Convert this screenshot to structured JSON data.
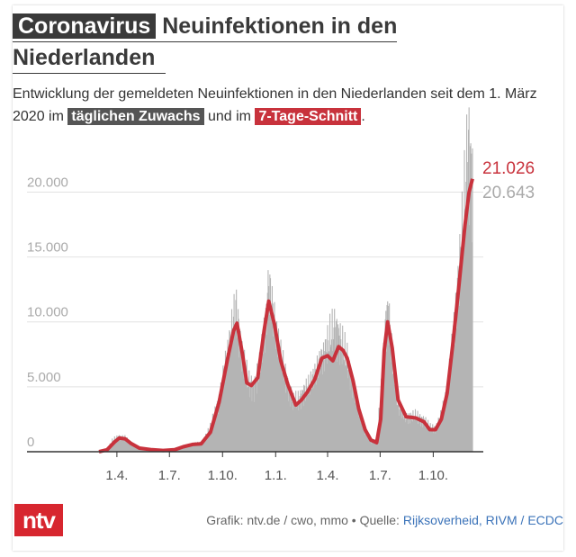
{
  "header": {
    "title_highlight": "Coronavirus",
    "title_line1_rest": "Neuinfektionen in den",
    "title_line2": "Niederlanden"
  },
  "subtitle": {
    "part1": "Entwicklung der gemeldeten Neuinfektionen in den Niederlanden seit dem 1. März 2020 im",
    "pill_daily": "täglichen Zuwachs",
    "part2": "und im",
    "pill_avg": "7-Tage-Schnitt",
    "part3": "."
  },
  "colors": {
    "bars": "#b4b4b4",
    "average_line": "#c8323c",
    "grid": "#e2e2e2",
    "axis": "#333333",
    "latest_avg_label": "#c8323c",
    "latest_daily_label": "#aaaaaa",
    "brand": "#d7262f",
    "source_link": "#3b73b9"
  },
  "chart_data": {
    "type": "bar",
    "x_start": "2020-03-01",
    "x_end": "2021-12-08",
    "ylim": [
      0,
      23500
    ],
    "y_ticks": [
      {
        "value": 0,
        "label": "0"
      },
      {
        "value": 5000,
        "label": "5.000"
      },
      {
        "value": 10000,
        "label": "10.000"
      },
      {
        "value": 15000,
        "label": "15.000"
      },
      {
        "value": 20000,
        "label": "20.000"
      }
    ],
    "x_ticks": [
      {
        "date": "2020-04-01",
        "label": "1.4."
      },
      {
        "date": "2020-07-01",
        "label": "1.7."
      },
      {
        "date": "2020-10-01",
        "label": "1.10."
      },
      {
        "date": "2021-01-01",
        "label": "1.1."
      },
      {
        "date": "2021-04-01",
        "label": "1.4."
      },
      {
        "date": "2021-07-01",
        "label": "1.7."
      },
      {
        "date": "2021-10-01",
        "label": "1.10."
      }
    ],
    "series": [
      {
        "name": "täglichen Zuwachs",
        "style": "bars",
        "points": [
          [
            "2020-03-01",
            0
          ],
          [
            "2020-03-15",
            180
          ],
          [
            "2020-03-25",
            900
          ],
          [
            "2020-04-05",
            1150
          ],
          [
            "2020-04-15",
            1050
          ],
          [
            "2020-04-25",
            650
          ],
          [
            "2020-05-10",
            250
          ],
          [
            "2020-06-01",
            150
          ],
          [
            "2020-06-20",
            100
          ],
          [
            "2020-07-10",
            180
          ],
          [
            "2020-07-25",
            450
          ],
          [
            "2020-08-10",
            600
          ],
          [
            "2020-08-25",
            650
          ],
          [
            "2020-09-10",
            1800
          ],
          [
            "2020-09-25",
            4000
          ],
          [
            "2020-10-10",
            7500
          ],
          [
            "2020-10-20",
            10200
          ],
          [
            "2020-10-25",
            11000
          ],
          [
            "2020-11-05",
            7000
          ],
          [
            "2020-11-15",
            5200
          ],
          [
            "2020-11-25",
            5000
          ],
          [
            "2020-12-05",
            6400
          ],
          [
            "2020-12-15",
            10000
          ],
          [
            "2020-12-20",
            13000
          ],
          [
            "2020-12-28",
            10500
          ],
          [
            "2021-01-10",
            7200
          ],
          [
            "2021-01-20",
            5500
          ],
          [
            "2021-02-01",
            3700
          ],
          [
            "2021-02-10",
            3900
          ],
          [
            "2021-02-20",
            4700
          ],
          [
            "2021-03-01",
            5000
          ],
          [
            "2021-03-15",
            6500
          ],
          [
            "2021-03-25",
            7500
          ],
          [
            "2021-04-05",
            8700
          ],
          [
            "2021-04-15",
            9500
          ],
          [
            "2021-04-25",
            8200
          ],
          [
            "2021-05-05",
            7000
          ],
          [
            "2021-05-15",
            5000
          ],
          [
            "2021-05-25",
            3200
          ],
          [
            "2021-06-05",
            1500
          ],
          [
            "2021-06-15",
            800
          ],
          [
            "2021-06-25",
            900
          ],
          [
            "2021-07-05",
            5500
          ],
          [
            "2021-07-10",
            9500
          ],
          [
            "2021-07-15",
            11000
          ],
          [
            "2021-07-22",
            7000
          ],
          [
            "2021-08-01",
            3500
          ],
          [
            "2021-08-15",
            2600
          ],
          [
            "2021-09-01",
            2700
          ],
          [
            "2021-09-15",
            2400
          ],
          [
            "2021-09-25",
            1800
          ],
          [
            "2021-10-05",
            1800
          ],
          [
            "2021-10-15",
            2800
          ],
          [
            "2021-10-25",
            4500
          ],
          [
            "2021-11-05",
            9000
          ],
          [
            "2021-11-15",
            14000
          ],
          [
            "2021-11-22",
            17500
          ],
          [
            "2021-11-28",
            21500
          ],
          [
            "2021-12-01",
            23500
          ],
          [
            "2021-12-05",
            22000
          ],
          [
            "2021-12-08",
            20643
          ]
        ]
      },
      {
        "name": "7-Tage-Schnitt",
        "style": "line",
        "points": [
          [
            "2020-03-01",
            0
          ],
          [
            "2020-03-15",
            150
          ],
          [
            "2020-03-28",
            750
          ],
          [
            "2020-04-05",
            1050
          ],
          [
            "2020-04-15",
            1000
          ],
          [
            "2020-04-25",
            650
          ],
          [
            "2020-05-10",
            280
          ],
          [
            "2020-06-01",
            150
          ],
          [
            "2020-06-20",
            100
          ],
          [
            "2020-07-10",
            150
          ],
          [
            "2020-07-25",
            380
          ],
          [
            "2020-08-10",
            560
          ],
          [
            "2020-08-25",
            600
          ],
          [
            "2020-09-10",
            1500
          ],
          [
            "2020-09-25",
            3800
          ],
          [
            "2020-10-10",
            7200
          ],
          [
            "2020-10-20",
            9300
          ],
          [
            "2020-10-26",
            9900
          ],
          [
            "2020-11-05",
            7400
          ],
          [
            "2020-11-12",
            5300
          ],
          [
            "2020-11-20",
            5100
          ],
          [
            "2020-12-01",
            5700
          ],
          [
            "2020-12-12",
            9300
          ],
          [
            "2020-12-20",
            11600
          ],
          [
            "2020-12-30",
            9800
          ],
          [
            "2021-01-10",
            7000
          ],
          [
            "2021-01-22",
            5200
          ],
          [
            "2021-02-05",
            3600
          ],
          [
            "2021-02-15",
            4000
          ],
          [
            "2021-02-25",
            4600
          ],
          [
            "2021-03-10",
            5600
          ],
          [
            "2021-03-22",
            7200
          ],
          [
            "2021-04-01",
            7400
          ],
          [
            "2021-04-10",
            7000
          ],
          [
            "2021-04-20",
            8100
          ],
          [
            "2021-04-28",
            7800
          ],
          [
            "2021-05-05",
            7200
          ],
          [
            "2021-05-15",
            5500
          ],
          [
            "2021-05-25",
            3300
          ],
          [
            "2021-06-05",
            1700
          ],
          [
            "2021-06-15",
            900
          ],
          [
            "2021-06-25",
            700
          ],
          [
            "2021-07-02",
            2500
          ],
          [
            "2021-07-08",
            7800
          ],
          [
            "2021-07-14",
            10000
          ],
          [
            "2021-07-22",
            8000
          ],
          [
            "2021-08-01",
            4000
          ],
          [
            "2021-08-15",
            2700
          ],
          [
            "2021-09-01",
            2600
          ],
          [
            "2021-09-15",
            2300
          ],
          [
            "2021-09-25",
            1700
          ],
          [
            "2021-10-05",
            1700
          ],
          [
            "2021-10-15",
            2500
          ],
          [
            "2021-10-25",
            4500
          ],
          [
            "2021-11-05",
            8700
          ],
          [
            "2021-11-15",
            13000
          ],
          [
            "2021-11-25",
            17500
          ],
          [
            "2021-12-02",
            20000
          ],
          [
            "2021-12-08",
            21026
          ]
        ]
      }
    ],
    "latest_avg_label": "21.026",
    "latest_daily_label": "20.643"
  },
  "footer": {
    "logo_text": "ntv",
    "source_prefix": "Grafik: ntv.de / cwo, mmo • Quelle:",
    "source_links": "Rijksoverheid, RIVM / ECDC"
  }
}
